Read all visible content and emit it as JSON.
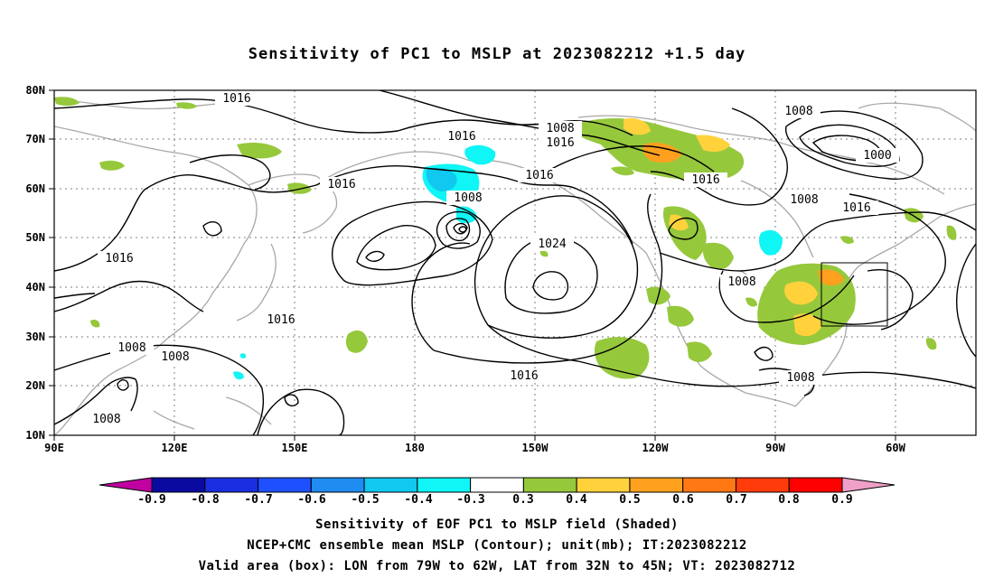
{
  "title": "Sensitivity of PC1 to MSLP at 2023082212 +1.5 day",
  "lat_labels": [
    "80N",
    "70N",
    "60N",
    "50N",
    "40N",
    "30N",
    "20N",
    "10N"
  ],
  "lon_labels": [
    "90E",
    "120E",
    "150E",
    "180",
    "150W",
    "120W",
    "90W",
    "60W"
  ],
  "colorbar": {
    "labels": [
      "-0.9",
      "-0.8",
      "-0.7",
      "-0.6",
      "-0.5",
      "-0.4",
      "-0.3",
      "0.3",
      "0.4",
      "0.5",
      "0.6",
      "0.7",
      "0.8",
      "0.9"
    ],
    "colors": [
      "#c000a0",
      "#0a0aa0",
      "#1a2ee0",
      "#1e50ff",
      "#1e8cf0",
      "#10c8f0",
      "#10f5f5",
      "#ffffff",
      "#96c83c",
      "#ffd23c",
      "#ffa01e",
      "#ff7814",
      "#ff3c0a",
      "#ff0000",
      "#f0a0c8"
    ]
  },
  "contour_labels": {
    "c1": "1016",
    "c2": "1008",
    "c3": "1016",
    "c4": "1016",
    "c5": "1016",
    "c6": "1008",
    "c7": "1016",
    "c8": "1024",
    "c9": "1016",
    "c10": "1008",
    "c11": "1008",
    "c12": "1016",
    "c13": "1008",
    "c14": "1000",
    "c15": "1008",
    "c16": "1016",
    "c17": "1016",
    "c18": "1008",
    "c19": "1008",
    "c20": "1008",
    "c21": "1008"
  },
  "captions": {
    "line1": "Sensitivity of EOF PC1 to MSLP field (Shaded)",
    "line2": "NCEP+CMC ensemble mean MSLP (Contour); unit(mb); IT:2023082212",
    "line3": "Valid area (box): LON from 79W to 62W, LAT from 32N to 45N; VT: 2023082712"
  }
}
